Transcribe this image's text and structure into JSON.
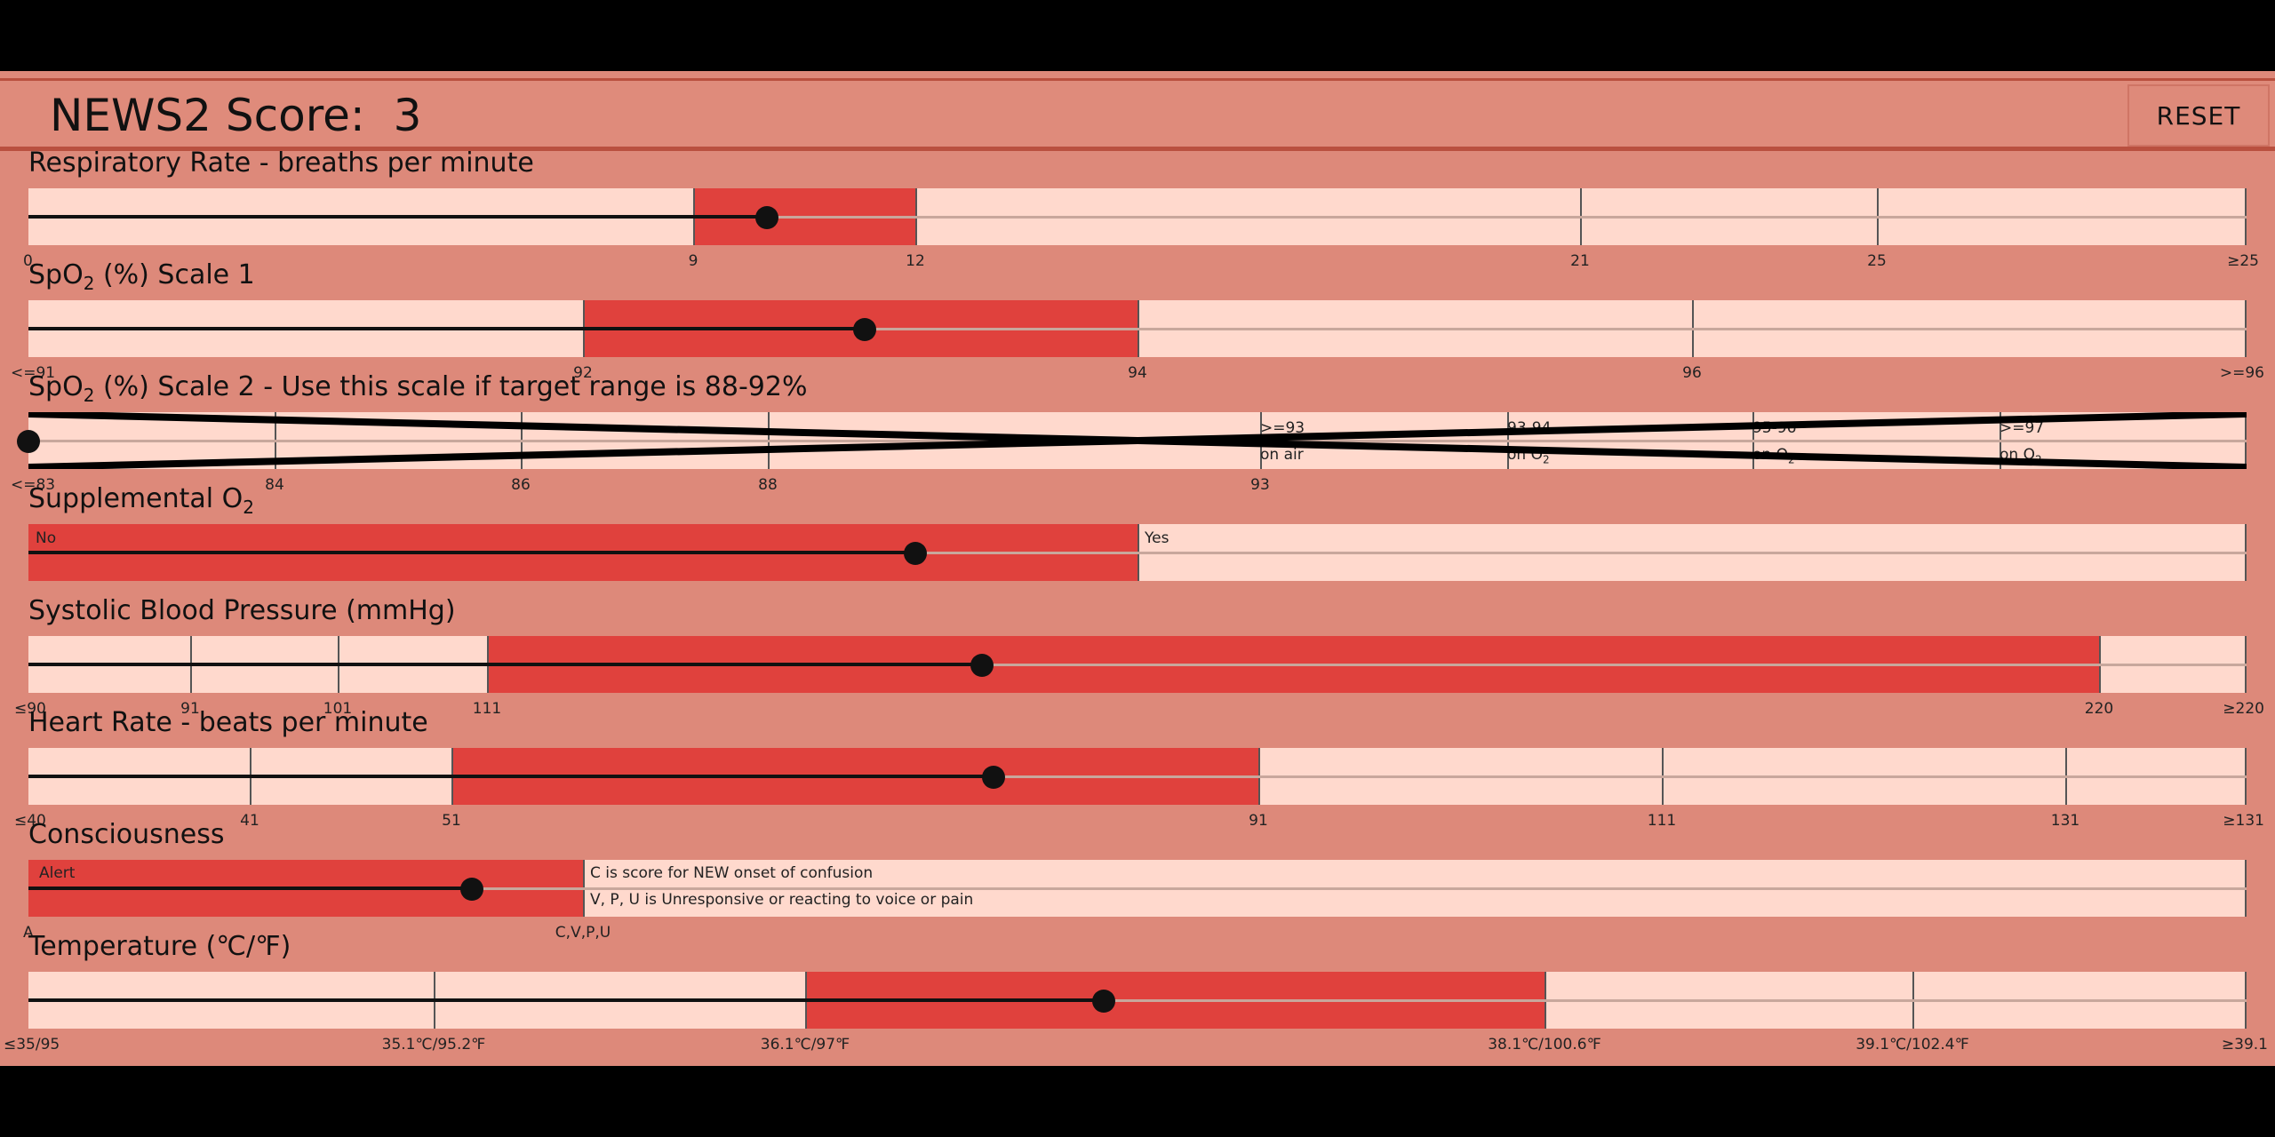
{
  "header": {
    "score_label": "NEWS2 Score:  ",
    "score_value": "3",
    "reset_label": "RESET"
  },
  "respiratory": {
    "title": "Respiratory Rate - breaths per minute",
    "ticks": [
      "0",
      "9",
      "12",
      "21",
      "25",
      "≥25"
    ]
  },
  "spo2_scale1": {
    "title_prefix": "SpO",
    "title_sub": "2",
    "title_suffix": " (%) Scale 1",
    "ticks": [
      "<=91",
      "92",
      "94",
      "96",
      ">=96"
    ]
  },
  "spo2_scale2": {
    "title_prefix": "SpO",
    "title_sub": "2",
    "title_suffix": " (%) Scale 2 - Use this scale if target range is 88-92%",
    "ticks": [
      "<=83",
      "84",
      "86",
      "88",
      "93"
    ],
    "labels": [
      {
        "top": ">=93",
        "bottom": "on air"
      },
      {
        "top": "93-94",
        "bottom": "on O",
        "sub": "2"
      },
      {
        "top": "95-96",
        "bottom": "on O",
        "sub": "2"
      },
      {
        "top": ">=97",
        "bottom": "on O",
        "sub": "2"
      }
    ]
  },
  "supplemental_o2": {
    "title_prefix": "Supplemental O",
    "title_sub": "2",
    "no_label": "No",
    "yes_label": "Yes"
  },
  "systolic_bp": {
    "title": "Systolic Blood Pressure (mmHg)",
    "ticks": [
      "≤90",
      "91",
      "101",
      "111",
      "220",
      "≥220"
    ]
  },
  "heart_rate": {
    "title": "Heart Rate - beats per minute",
    "ticks": [
      "≤40",
      "41",
      "51",
      "91",
      "111",
      "131",
      "≥131"
    ]
  },
  "consciousness": {
    "title": "Consciousness",
    "alert_label": "Alert",
    "note1": "C is score for NEW onset of confusion",
    "note2": "V, P, U is Unresponsive or reacting to voice or pain",
    "ticks": [
      "A",
      "C,V,P,U"
    ]
  },
  "temperature": {
    "title": "Temperature (℃/℉)",
    "ticks": [
      "≤35/95",
      "35.1℃/95.2℉",
      "36.1℃/97℉",
      "38.1℃/100.6℉",
      "39.1℃/102.4℉",
      "≥39.1"
    ]
  },
  "slider_values": {
    "respiratory_fraction": 0.333,
    "spo2_scale1_fraction": 0.377,
    "spo2_scale2_fraction": 0.0,
    "supplemental_o2_fraction": 0.4,
    "systolic_bp_fraction": 0.43,
    "heart_rate_fraction": 0.435,
    "consciousness_fraction": 0.2,
    "temperature_fraction": 0.485
  },
  "colors": {
    "active_segment": "#e0413d",
    "inactive_segment": "#ffd9cd",
    "background": "#dd897a"
  }
}
